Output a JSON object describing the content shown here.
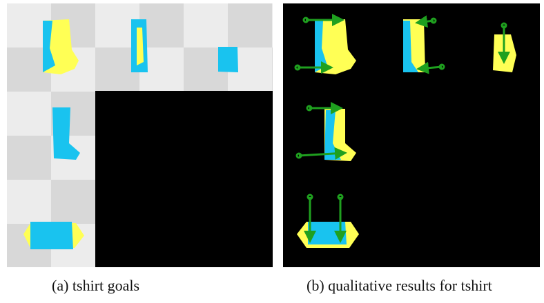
{
  "figure": {
    "panels": [
      {
        "caption": "(a) tshirt goals"
      },
      {
        "caption": "(b) qualitative results for tshirt"
      }
    ]
  }
}
